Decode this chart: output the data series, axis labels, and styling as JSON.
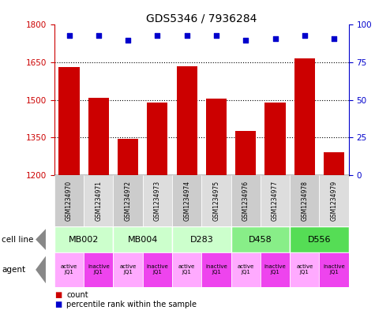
{
  "title": "GDS5346 / 7936284",
  "samples": [
    "GSM1234970",
    "GSM1234971",
    "GSM1234972",
    "GSM1234973",
    "GSM1234974",
    "GSM1234975",
    "GSM1234976",
    "GSM1234977",
    "GSM1234978",
    "GSM1234979"
  ],
  "counts": [
    1630,
    1510,
    1345,
    1490,
    1635,
    1505,
    1375,
    1490,
    1665,
    1290
  ],
  "percentiles": [
    93,
    93,
    90,
    93,
    93,
    93,
    90,
    91,
    93,
    91
  ],
  "ylim_left": [
    1200,
    1800
  ],
  "ylim_right": [
    0,
    100
  ],
  "yticks_left": [
    1200,
    1350,
    1500,
    1650,
    1800
  ],
  "yticks_right": [
    0,
    25,
    50,
    75,
    100
  ],
  "cell_lines": [
    {
      "label": "MB002",
      "start": 0,
      "end": 2,
      "color": "#ccffcc"
    },
    {
      "label": "MB004",
      "start": 2,
      "end": 4,
      "color": "#ccffcc"
    },
    {
      "label": "D283",
      "start": 4,
      "end": 6,
      "color": "#ccffcc"
    },
    {
      "label": "D458",
      "start": 6,
      "end": 8,
      "color": "#88ee88"
    },
    {
      "label": "D556",
      "start": 8,
      "end": 10,
      "color": "#55dd55"
    }
  ],
  "agents": [
    "active\nJQ1",
    "inactive\nJQ1",
    "active\nJQ1",
    "inactive\nJQ1",
    "active\nJQ1",
    "inactive\nJQ1",
    "active\nJQ1",
    "inactive\nJQ1",
    "active\nJQ1",
    "inactive\nJQ1"
  ],
  "agent_active_color": "#ffaaff",
  "agent_inactive_color": "#ee44ee",
  "bar_color": "#cc0000",
  "dot_color": "#0000cc",
  "bar_width": 0.7,
  "left_axis_color": "#cc0000",
  "right_axis_color": "#0000cc",
  "sample_bg_even": "#cccccc",
  "sample_bg_odd": "#dddddd"
}
